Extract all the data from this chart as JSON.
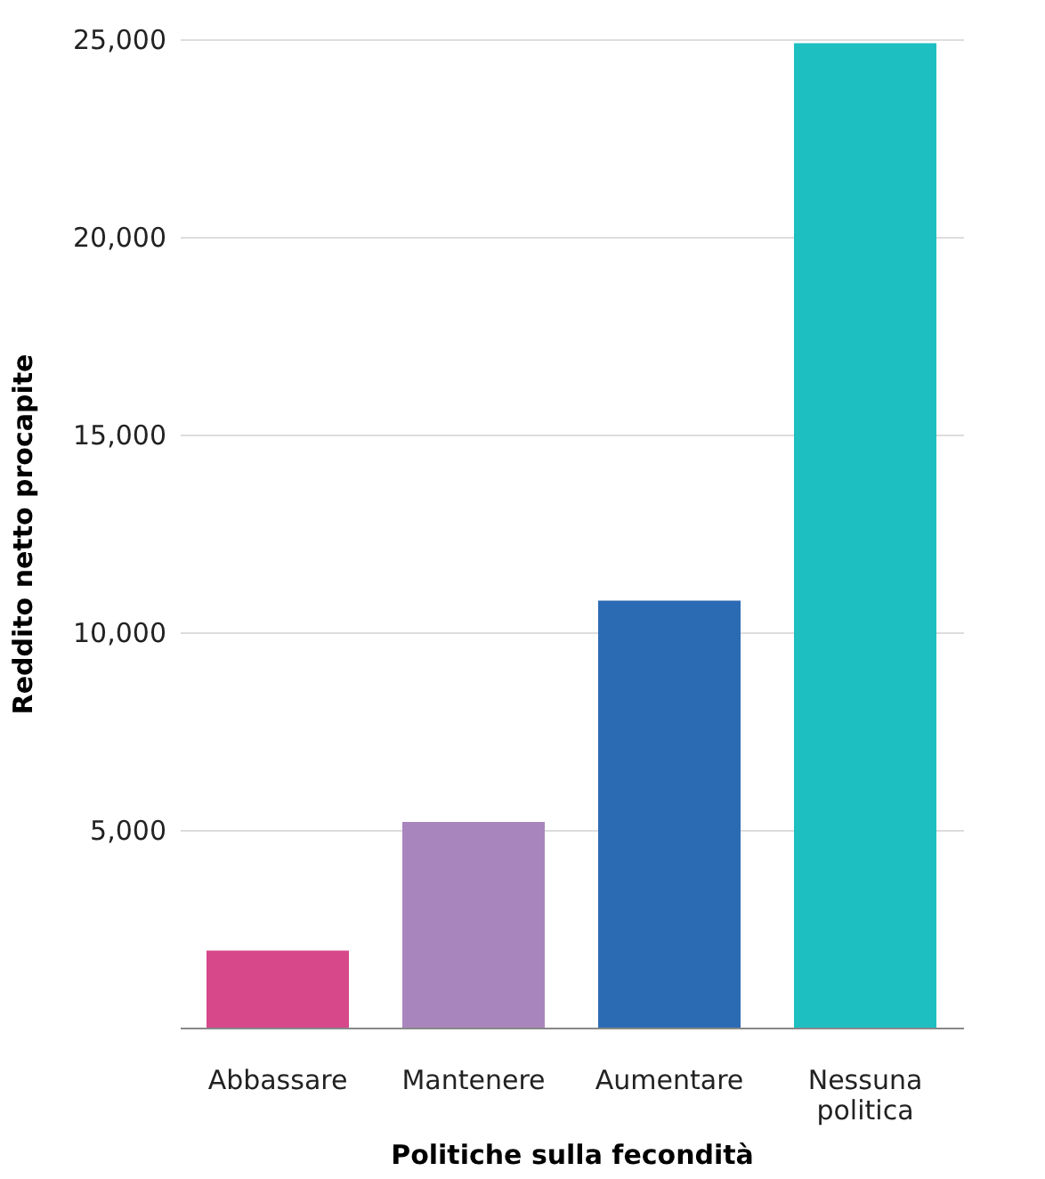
{
  "chart_data": {
    "type": "bar",
    "xlabel": "Politiche sulla fecondità",
    "ylabel": "Reddito netto procapite",
    "categories": [
      "Abbassare",
      "Mantenere",
      "Aumentare",
      "Nessuna politica"
    ],
    "values": [
      1950,
      5200,
      10800,
      24900
    ],
    "colors": [
      "#d6488a",
      "#a886bd",
      "#2b6bb4",
      "#1dbfc1"
    ],
    "ylim": [
      0,
      25000
    ],
    "yticks": [
      {
        "value": 5000,
        "label": "5,000"
      },
      {
        "value": 10000,
        "label": "10,000"
      },
      {
        "value": 15000,
        "label": "15,000"
      },
      {
        "value": 20000,
        "label": "20,000"
      },
      {
        "value": 25000,
        "label": "25,000"
      }
    ],
    "grid": "y",
    "legend": false
  }
}
